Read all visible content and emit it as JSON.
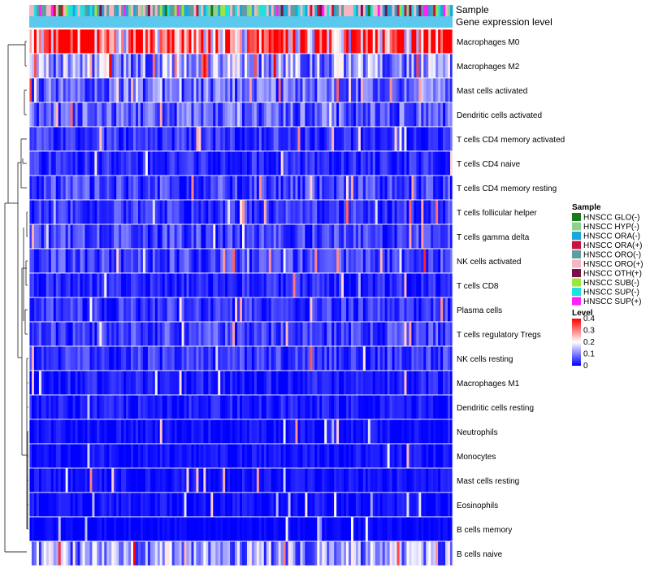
{
  "chart_data": {
    "type": "heatmap",
    "annotation_tracks": [
      "Sample",
      "Gene expression level"
    ],
    "rows": [
      "Macrophages M0",
      "Macrophages M2",
      "Mast cells activated",
      "Dendritic cells activated",
      "T cells CD4 memory activated",
      "T cells CD4 naive",
      "T cells CD4 memory resting",
      "T cells follicular helper",
      "T cells gamma delta",
      "NK cells activated",
      "T cells CD8",
      "Plasma cells",
      "T cells regulatory  Tregs",
      "NK cells resting",
      "Macrophages M1",
      "Dendritic cells resting",
      "Neutrophils",
      "Monocytes",
      "Mast cells resting",
      "Eosinophils",
      "B cells memory",
      "B cells naive"
    ],
    "row_typical_level": [
      0.34,
      0.12,
      0.08,
      0.07,
      0.04,
      0.03,
      0.05,
      0.04,
      0.05,
      0.05,
      0.03,
      0.04,
      0.05,
      0.04,
      0.02,
      0.02,
      0.01,
      0.01,
      0.01,
      0.01,
      0.0,
      0.12
    ],
    "num_samples": 175,
    "level_range": [
      0,
      0.4
    ],
    "legend": {
      "sample_title": "Sample",
      "samples": [
        {
          "label": "HNSCC GLO(-)",
          "color": "#1a7a1a"
        },
        {
          "label": "HNSCC HYP(-)",
          "color": "#8fd18f"
        },
        {
          "label": "HNSCC ORA(-)",
          "color": "#1ba7d9"
        },
        {
          "label": "HNSCC ORA(+)",
          "color": "#c8143c"
        },
        {
          "label": "HNSCC ORO(-)",
          "color": "#5f9ea0"
        },
        {
          "label": "HNSCC ORO(+)",
          "color": "#f4b6c2"
        },
        {
          "label": "HNSCC OTH(+)",
          "color": "#7a0f4e"
        },
        {
          "label": "HNSCC SUB(-)",
          "color": "#9ae63c"
        },
        {
          "label": "HNSCC SUP(-)",
          "color": "#1fe0e0"
        },
        {
          "label": "HNSCC SUP(+)",
          "color": "#ff20ff"
        }
      ],
      "level_title": "Level",
      "level_ticks": [
        0.4,
        0.3,
        0.2,
        0.1,
        0
      ],
      "level_tick_labels": [
        "0.4",
        "0.3",
        "0.2",
        "0.1",
        "0"
      ]
    },
    "gene_expression_color": "#5bc8ee",
    "color_scale": {
      "low": "#0000ff",
      "mid": "#ffffff",
      "high": "#ff0000",
      "mid_value": 0.2
    }
  }
}
